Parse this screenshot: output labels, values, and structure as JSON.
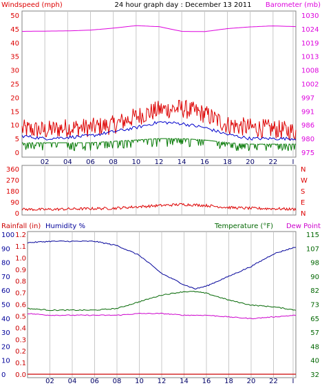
{
  "header": {
    "title": "24 hour graph day : December 13 2011",
    "left_label": "Windspeed (mph)",
    "right_label": "Barometer (mb)"
  },
  "colors": {
    "wind": "#dd0000",
    "gust_avg": "#0000cc",
    "wind_low": "#007700",
    "baro": "#dd00dd",
    "grid": "#c8c8c8",
    "border": "#808080",
    "temp": "#006600",
    "humidity": "#000099",
    "dew": "#cc00cc",
    "rain": "#cc0000"
  },
  "chart_data": [
    {
      "type": "line",
      "name": "wind-barometer",
      "left_axis_label": "Windspeed (mph)",
      "right_axis_label": "Barometer (mb)",
      "x_ticks": [
        "02",
        "04",
        "06",
        "08",
        "10",
        "12",
        "14",
        "16",
        "18",
        "20",
        "22",
        "I"
      ],
      "left_ticks": [
        "50",
        "45",
        "40",
        "35",
        "30",
        "25",
        "20",
        "15",
        "10",
        "5",
        "0"
      ],
      "right_ticks": [
        "1030",
        "1024",
        "1019",
        "1013",
        "1008",
        "1002",
        "997",
        "991",
        "986",
        "980",
        "975"
      ],
      "ylim_left": [
        0,
        50
      ],
      "ylim_right": [
        975,
        1030
      ],
      "hours": [
        0,
        2,
        4,
        6,
        8,
        10,
        12,
        14,
        16,
        18,
        20,
        22,
        24
      ],
      "series": [
        {
          "values": [
            8.5,
            8,
            9,
            9,
            10,
            13,
            15.5,
            16,
            14,
            10,
            9,
            8.5,
            7.5
          ]
        },
        {
          "values": [
            6,
            5,
            5.5,
            6,
            7.5,
            9,
            11,
            10.5,
            9,
            6.5,
            5,
            5,
            5
          ]
        },
        {
          "values": [
            3.5,
            3.5,
            3.5,
            3.5,
            4,
            4.5,
            5,
            5,
            4.5,
            3.5,
            3,
            3,
            3
          ]
        },
        {
          "values": [
            1023.5,
            1023.6,
            1023.7,
            1024.0,
            1024.8,
            1025.8,
            1025.4,
            1023.5,
            1023.4,
            1024.6,
            1025.3,
            1025.7,
            1025.4
          ]
        }
      ]
    },
    {
      "type": "line",
      "name": "wind-direction",
      "y_ticks": [
        "360",
        "270",
        "180",
        "90",
        "0"
      ],
      "direction_letters": [
        "N",
        "W",
        "S",
        "E",
        "N"
      ],
      "ylim": [
        0,
        360
      ],
      "hours": [
        0,
        2,
        4,
        6,
        8,
        10,
        12,
        14,
        16,
        18,
        20,
        22,
        24
      ],
      "series": [
        {
          "values": [
            30,
            28,
            32,
            35,
            38,
            50,
            60,
            70,
            62,
            45,
            38,
            35,
            30
          ]
        }
      ]
    },
    {
      "type": "line",
      "name": "temperature-humidity",
      "labels": {
        "rain": "Rainfall (in)",
        "humidity": "Humidity %",
        "temp": "Temperature (°F)",
        "dew": "Dew Point"
      },
      "x_ticks": [
        "02",
        "04",
        "06",
        "08",
        "10",
        "12",
        "14",
        "16",
        "18",
        "20",
        "22",
        "I"
      ],
      "humidity_ticks": [
        "100",
        "90",
        "80",
        "70",
        "60",
        "50",
        "40",
        "30",
        "20",
        "10",
        "0"
      ],
      "rain_ticks": [
        "1.2",
        "1.1",
        "1.0",
        "0.9",
        "0.8",
        "0.7",
        "0.6",
        "0.5",
        "0.4",
        "0.3",
        "0.2",
        "0.1",
        "0.0"
      ],
      "temp_ticks": [
        "115",
        "107",
        "98",
        "90",
        "82",
        "73",
        "65",
        "57",
        "48",
        "40",
        "32"
      ],
      "ylim_humidity": [
        0,
        100
      ],
      "ylim_temp": [
        32,
        115
      ],
      "ylim_rain": [
        0,
        1.2
      ],
      "hours": [
        0,
        2,
        4,
        6,
        8,
        10,
        12,
        14,
        15,
        16,
        18,
        20,
        22,
        24
      ],
      "series": [
        {
          "values": [
            94,
            95,
            95,
            95,
            92,
            85,
            72,
            64,
            61,
            63,
            70,
            77,
            86,
            91
          ]
        },
        {
          "values": [
            71,
            70,
            70,
            70,
            71,
            75,
            79,
            81,
            81,
            80,
            76,
            73,
            72,
            70
          ]
        },
        {
          "values": [
            68,
            67,
            67,
            67,
            67,
            68,
            68,
            67,
            67,
            67,
            66,
            65,
            66,
            67
          ]
        },
        {
          "values": [
            0,
            0,
            0,
            0,
            0,
            0,
            0,
            0,
            0,
            0,
            0,
            0,
            0,
            0
          ]
        }
      ]
    }
  ]
}
